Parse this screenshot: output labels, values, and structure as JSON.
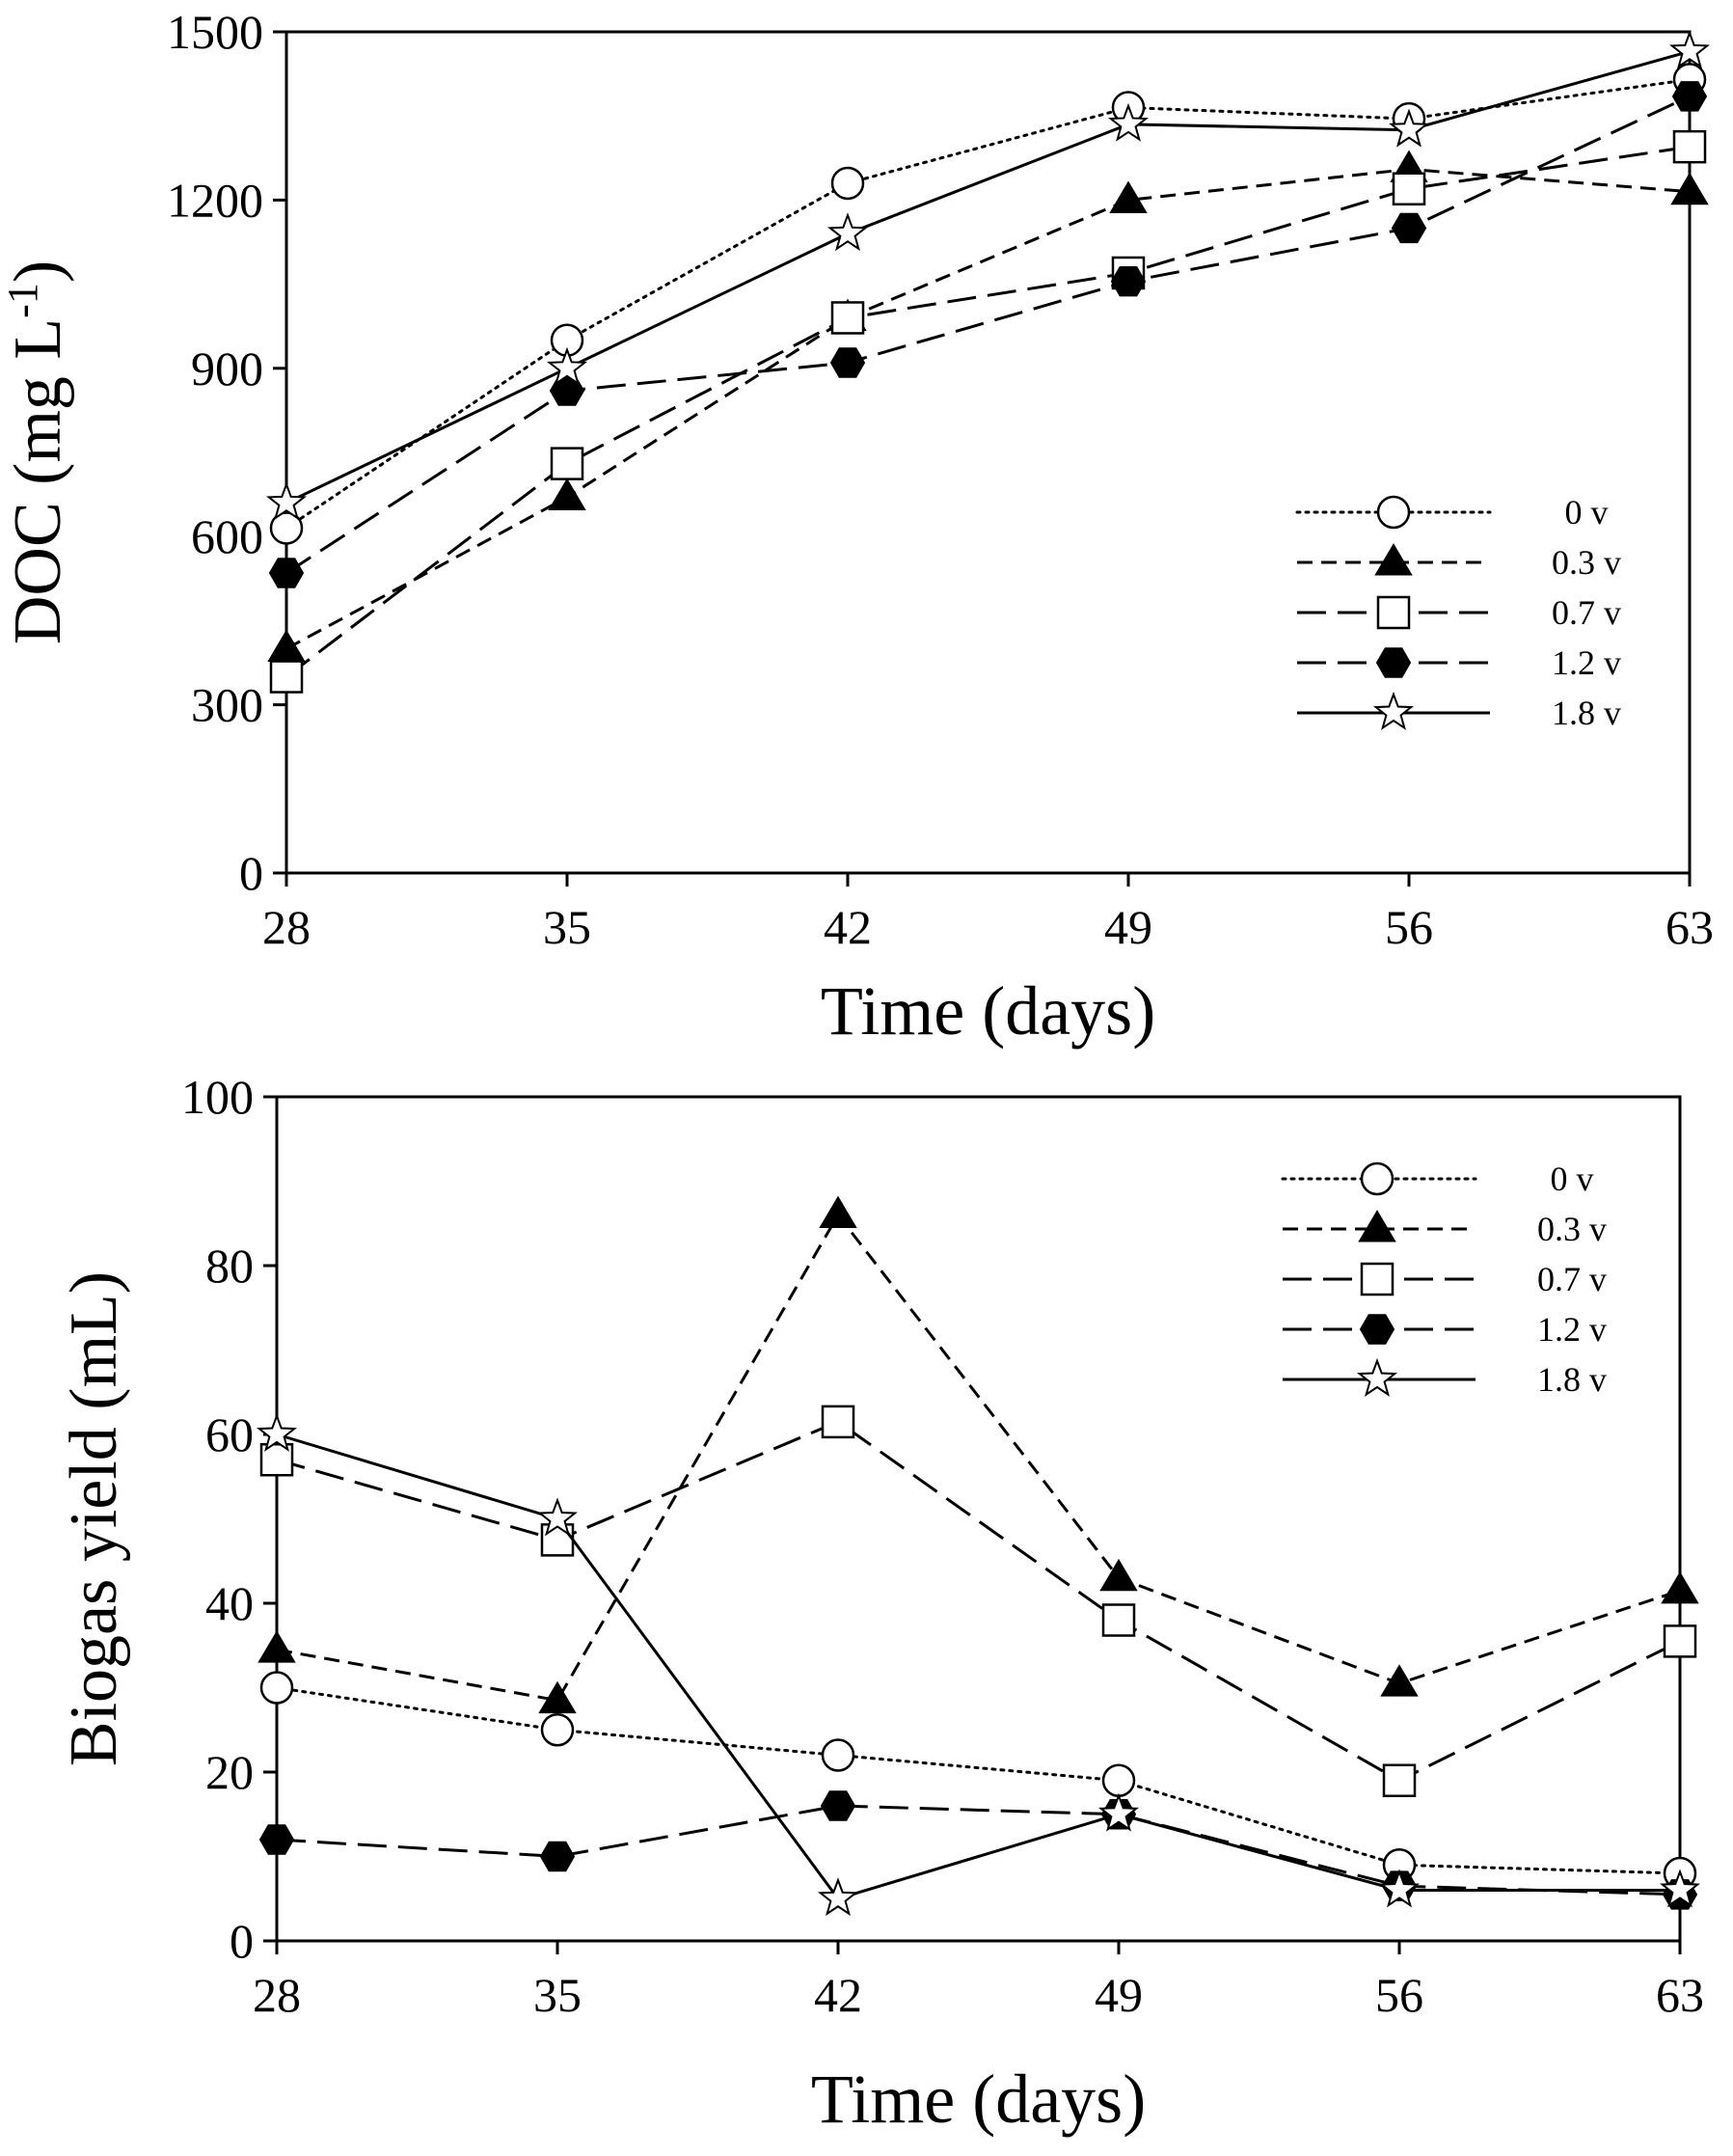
{
  "chart_data": [
    {
      "type": "line",
      "xlabel": "Time (days)",
      "ylabel": "DOC (mg L",
      "ylabel_sup": "-1",
      "ylabel_close": ")",
      "x": [
        28,
        35,
        42,
        49,
        56,
        63
      ],
      "xticks": [
        "28",
        "35",
        "42",
        "49",
        "56",
        "63"
      ],
      "xlim": [
        28,
        63
      ],
      "ylim": [
        0,
        1500
      ],
      "yticks": [
        "0",
        "300",
        "600",
        "900",
        "1200",
        "1500"
      ],
      "grid": false,
      "legend_position": "right",
      "series": [
        {
          "name": "0 v",
          "marker": "circle-open",
          "dash": "dotted",
          "values": [
            615,
            950,
            1230,
            1365,
            1345,
            1415
          ]
        },
        {
          "name": "0.3 v",
          "marker": "triangle-filled",
          "dash": "short-dash",
          "values": [
            400,
            670,
            990,
            1200,
            1255,
            1215
          ]
        },
        {
          "name": "0.7 v",
          "marker": "square-open",
          "dash": "long-dash",
          "values": [
            350,
            730,
            990,
            1070,
            1220,
            1295
          ]
        },
        {
          "name": "1.2 v",
          "marker": "hexagon-filled",
          "dash": "long-dash",
          "values": [
            535,
            860,
            910,
            1055,
            1150,
            1385
          ]
        },
        {
          "name": "1.8 v",
          "marker": "star-open",
          "dash": "solid",
          "values": [
            660,
            900,
            1140,
            1335,
            1325,
            1465
          ]
        }
      ]
    },
    {
      "type": "line",
      "xlabel": "Time (days)",
      "ylabel": "Biogas yield (mL)",
      "x": [
        28,
        35,
        42,
        49,
        56,
        63
      ],
      "xticks": [
        "28",
        "35",
        "42",
        "49",
        "56",
        "63"
      ],
      "xlim": [
        28,
        63
      ],
      "ylim": [
        0,
        100
      ],
      "yticks": [
        "0",
        "20",
        "40",
        "60",
        "80",
        "100"
      ],
      "grid": false,
      "legend_position": "top-right",
      "series": [
        {
          "name": "0 v",
          "marker": "circle-open",
          "dash": "dotted",
          "values": [
            30,
            25,
            22,
            19,
            9,
            8
          ]
        },
        {
          "name": "0.3 v",
          "marker": "triangle-filled",
          "dash": "short-dash",
          "values": [
            34.5,
            28.5,
            86,
            43,
            30.5,
            41.5
          ]
        },
        {
          "name": "0.7 v",
          "marker": "square-open",
          "dash": "long-dash",
          "values": [
            57,
            47.5,
            61.5,
            38,
            19,
            35.5
          ]
        },
        {
          "name": "1.2 v",
          "marker": "hexagon-filled",
          "dash": "long-dash",
          "values": [
            12,
            10,
            16,
            15,
            6.5,
            5.5
          ]
        },
        {
          "name": "1.8 v",
          "marker": "star-open",
          "dash": "solid",
          "values": [
            60,
            50,
            5,
            15,
            6,
            6
          ]
        }
      ]
    }
  ]
}
